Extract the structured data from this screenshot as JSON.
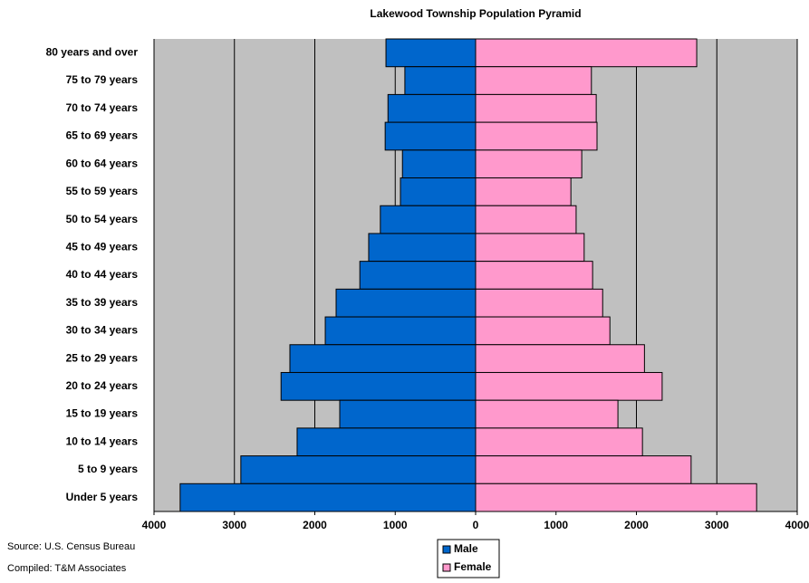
{
  "chart_data": {
    "type": "pyramid",
    "title": "Lakewood Township Population Pyramid",
    "categories": [
      "80 years and over",
      "75 to 79 years",
      "70 to 74 years",
      "65 to 69 years",
      "60 to 64 years",
      "55 to 59 years",
      "50 to 54 years",
      "45 to 49 years",
      "40 to 44 years",
      "35 to 39 years",
      "30 to 34 years",
      "25 to 29 years",
      "20 to 24 years",
      "15 to 19 years",
      "10 to 14 years",
      "5 to 9 years",
      "Under 5 years"
    ],
    "series": [
      {
        "name": "Male",
        "color": "#0066cc",
        "values": [
          -1115,
          -880,
          -1090,
          -1125,
          -910,
          -935,
          -1185,
          -1330,
          -1440,
          -1735,
          -1870,
          -2310,
          -2420,
          -1690,
          -2220,
          -2920,
          -3675
        ]
      },
      {
        "name": "Female",
        "color": "#ff99cc",
        "values": [
          2750,
          1440,
          1500,
          1510,
          1320,
          1185,
          1250,
          1350,
          1455,
          1580,
          1670,
          2100,
          2320,
          1770,
          2075,
          2680,
          3495
        ]
      }
    ],
    "xlim": [
      -4000,
      4000
    ],
    "xticks": [
      {
        "value": -4000,
        "label": "4000"
      },
      {
        "value": -3000,
        "label": "3000"
      },
      {
        "value": -2000,
        "label": "2000"
      },
      {
        "value": -1000,
        "label": "1000"
      },
      0,
      1000,
      2000,
      3000,
      4000
    ],
    "grid": true,
    "plot_background": "#c0c0c0",
    "notes": [
      "Source: U.S. Census Bureau",
      "Compiled: T&M Associates"
    ]
  }
}
